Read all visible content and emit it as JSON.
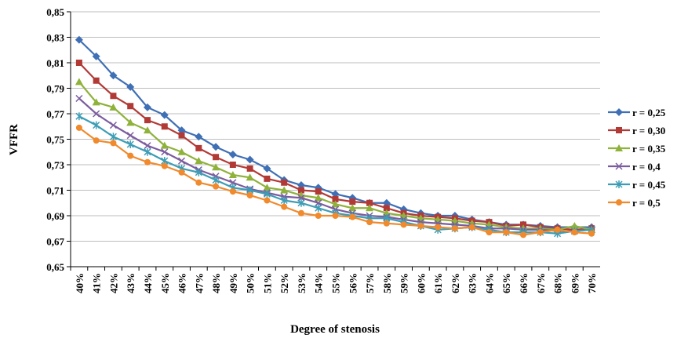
{
  "chart_data": {
    "type": "line",
    "x_label": "Degree of stenosis",
    "y_label": "VFFR",
    "categories": [
      "40%",
      "41%",
      "42%",
      "43%",
      "44%",
      "45%",
      "46%",
      "47%",
      "48%",
      "49%",
      "50%",
      "51%",
      "52%",
      "53%",
      "54%",
      "55%",
      "56%",
      "57%",
      "58%",
      "59%",
      "60%",
      "61%",
      "62%",
      "63%",
      "64%",
      "65%",
      "66%",
      "67%",
      "68%",
      "69%",
      "70%"
    ],
    "series": [
      {
        "name": "r  = 0,25",
        "color": "#3f6fb5",
        "marker": "diamond",
        "values": [
          0.828,
          0.815,
          0.8,
          0.791,
          0.775,
          0.769,
          0.757,
          0.752,
          0.744,
          0.738,
          0.734,
          0.727,
          0.718,
          0.714,
          0.712,
          0.707,
          0.704,
          0.7,
          0.7,
          0.695,
          0.692,
          0.69,
          0.69,
          0.687,
          0.685,
          0.683,
          0.683,
          0.682,
          0.681,
          0.681,
          0.681
        ]
      },
      {
        "name": "r = 0,30",
        "color": "#b23a36",
        "marker": "square",
        "values": [
          0.81,
          0.796,
          0.784,
          0.776,
          0.765,
          0.76,
          0.753,
          0.743,
          0.736,
          0.73,
          0.727,
          0.719,
          0.716,
          0.71,
          0.709,
          0.703,
          0.701,
          0.7,
          0.696,
          0.692,
          0.69,
          0.689,
          0.688,
          0.686,
          0.685,
          0.682,
          0.683,
          0.681,
          0.68,
          0.679,
          0.68
        ]
      },
      {
        "name": "r = 0,35",
        "color": "#8fb23b",
        "marker": "triangle",
        "values": [
          0.795,
          0.779,
          0.775,
          0.763,
          0.757,
          0.745,
          0.74,
          0.733,
          0.728,
          0.722,
          0.72,
          0.712,
          0.71,
          0.706,
          0.704,
          0.699,
          0.696,
          0.696,
          0.692,
          0.69,
          0.688,
          0.687,
          0.686,
          0.684,
          0.683,
          0.681,
          0.68,
          0.68,
          0.679,
          0.682,
          0.679
        ]
      },
      {
        "name": "r = 0,4",
        "color": "#7b5c9e",
        "marker": "x",
        "values": [
          0.782,
          0.77,
          0.761,
          0.753,
          0.745,
          0.74,
          0.733,
          0.726,
          0.721,
          0.716,
          0.711,
          0.708,
          0.705,
          0.704,
          0.7,
          0.695,
          0.692,
          0.69,
          0.689,
          0.687,
          0.685,
          0.684,
          0.683,
          0.682,
          0.68,
          0.68,
          0.679,
          0.679,
          0.678,
          0.678,
          0.679
        ]
      },
      {
        "name": "r = 0,45",
        "color": "#3d9db5",
        "marker": "star",
        "values": [
          0.768,
          0.761,
          0.752,
          0.746,
          0.74,
          0.733,
          0.727,
          0.724,
          0.718,
          0.712,
          0.71,
          0.707,
          0.702,
          0.7,
          0.696,
          0.692,
          0.69,
          0.688,
          0.688,
          0.685,
          0.682,
          0.679,
          0.68,
          0.681,
          0.679,
          0.677,
          0.677,
          0.677,
          0.676,
          0.678,
          0.679
        ]
      },
      {
        "name": "r = 0,5",
        "color": "#f08a2c",
        "marker": "circle",
        "values": [
          0.759,
          0.749,
          0.747,
          0.737,
          0.732,
          0.729,
          0.724,
          0.716,
          0.713,
          0.709,
          0.706,
          0.702,
          0.697,
          0.692,
          0.69,
          0.69,
          0.689,
          0.685,
          0.684,
          0.683,
          0.682,
          0.681,
          0.68,
          0.681,
          0.677,
          0.677,
          0.675,
          0.677,
          0.679,
          0.677,
          0.676
        ]
      }
    ],
    "ylim": [
      0.65,
      0.85
    ],
    "yticks": [
      {
        "value": 0.65,
        "label": "0,65"
      },
      {
        "value": 0.67,
        "label": "0,67"
      },
      {
        "value": 0.69,
        "label": "0,69"
      },
      {
        "value": 0.71,
        "label": "0,71"
      },
      {
        "value": 0.73,
        "label": "0,73"
      },
      {
        "value": 0.75,
        "label": "0,75"
      },
      {
        "value": 0.77,
        "label": "0,77"
      },
      {
        "value": 0.79,
        "label": "0,79"
      },
      {
        "value": 0.81,
        "label": "0,81"
      },
      {
        "value": 0.83,
        "label": "0,83"
      },
      {
        "value": 0.85,
        "label": "0,85"
      }
    ],
    "grid": true,
    "legend": "right"
  }
}
